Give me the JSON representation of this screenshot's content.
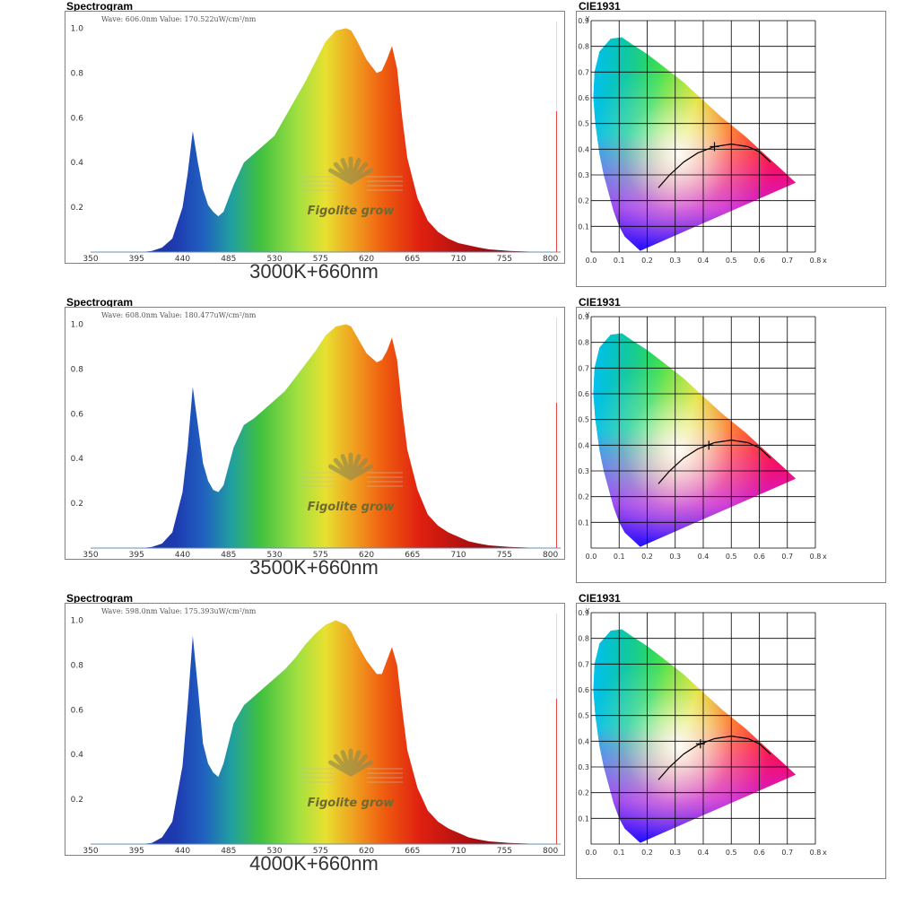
{
  "chart_data": [
    {
      "type": "area",
      "title": "Spectrogram",
      "readout": "Wave: 606.0nm Value: 170.522uW/cm²/nm",
      "caption": "3000K+660nm",
      "watermark": "Figolite grow",
      "xlim": [
        350,
        810
      ],
      "ylim": [
        0,
        1.05
      ],
      "x_ticks": [
        "350",
        "395",
        "440",
        "485",
        "530",
        "575",
        "620",
        "665",
        "710",
        "755",
        "800"
      ],
      "y_ticks": [
        "1.0",
        "0.8",
        "0.6",
        "0.4",
        "0.2"
      ],
      "x": [
        350,
        400,
        410,
        420,
        430,
        440,
        445,
        450,
        455,
        460,
        465,
        470,
        475,
        480,
        490,
        500,
        510,
        520,
        530,
        540,
        550,
        560,
        570,
        580,
        590,
        600,
        605,
        610,
        620,
        630,
        635,
        640,
        645,
        650,
        655,
        660,
        670,
        680,
        690,
        700,
        710,
        720,
        730,
        740,
        760,
        780,
        800,
        810
      ],
      "values": [
        0,
        0,
        0.005,
        0.02,
        0.06,
        0.2,
        0.35,
        0.54,
        0.4,
        0.28,
        0.21,
        0.18,
        0.16,
        0.18,
        0.3,
        0.4,
        0.44,
        0.48,
        0.52,
        0.6,
        0.68,
        0.76,
        0.85,
        0.94,
        0.99,
        1.0,
        0.99,
        0.95,
        0.86,
        0.8,
        0.81,
        0.86,
        0.92,
        0.82,
        0.6,
        0.42,
        0.24,
        0.14,
        0.09,
        0.06,
        0.04,
        0.03,
        0.02,
        0.012,
        0.005,
        0.002,
        0.001,
        0
      ],
      "marker": {
        "x": 806,
        "value": 0.63
      },
      "cie": {
        "title": "CIE1931",
        "point": {
          "x": 0.44,
          "y": 0.41
        },
        "x_ticks": [
          "0.0",
          "0.1",
          "0.2",
          "0.3",
          "0.4",
          "0.5",
          "0.6",
          "0.7",
          "0.8"
        ],
        "y_ticks": [
          "0.9",
          "0.8",
          "0.7",
          "0.6",
          "0.5",
          "0.4",
          "0.3",
          "0.2",
          "0.1"
        ],
        "x_label": "x",
        "y_label": "y"
      }
    },
    {
      "type": "area",
      "title": "Spectrogram",
      "readout": "Wave: 608.0nm Value: 180.477uW/cm²/nm",
      "caption": "3500K+660nm",
      "watermark": "Figolite grow",
      "xlim": [
        350,
        810
      ],
      "ylim": [
        0,
        1.05
      ],
      "x_ticks": [
        "350",
        "395",
        "440",
        "485",
        "530",
        "575",
        "620",
        "665",
        "710",
        "755",
        "800"
      ],
      "y_ticks": [
        "1.0",
        "0.8",
        "0.6",
        "0.4",
        "0.2"
      ],
      "x": [
        350,
        400,
        410,
        420,
        430,
        440,
        445,
        450,
        455,
        460,
        465,
        470,
        475,
        480,
        490,
        500,
        510,
        520,
        530,
        540,
        550,
        560,
        570,
        580,
        590,
        600,
        605,
        610,
        620,
        630,
        635,
        640,
        645,
        650,
        655,
        660,
        670,
        680,
        690,
        700,
        710,
        720,
        730,
        740,
        760,
        780,
        800,
        810
      ],
      "values": [
        0,
        0,
        0.005,
        0.02,
        0.07,
        0.25,
        0.45,
        0.72,
        0.55,
        0.38,
        0.3,
        0.26,
        0.25,
        0.28,
        0.45,
        0.55,
        0.58,
        0.62,
        0.66,
        0.7,
        0.76,
        0.82,
        0.88,
        0.95,
        0.99,
        1.0,
        0.99,
        0.95,
        0.87,
        0.83,
        0.84,
        0.88,
        0.94,
        0.84,
        0.62,
        0.44,
        0.26,
        0.15,
        0.1,
        0.07,
        0.05,
        0.03,
        0.02,
        0.012,
        0.005,
        0.002,
        0.001,
        0
      ],
      "marker": {
        "x": 806,
        "value": 0.65
      },
      "cie": {
        "title": "CIE1931",
        "point": {
          "x": 0.42,
          "y": 0.4
        },
        "x_ticks": [
          "0.0",
          "0.1",
          "0.2",
          "0.3",
          "0.4",
          "0.5",
          "0.6",
          "0.7",
          "0.8"
        ],
        "y_ticks": [
          "0.9",
          "0.8",
          "0.7",
          "0.6",
          "0.5",
          "0.4",
          "0.3",
          "0.2",
          "0.1"
        ],
        "x_label": "x",
        "y_label": "y"
      }
    },
    {
      "type": "area",
      "title": "Spectrogram",
      "readout": "Wave: 598.0nm Value: 175.393uW/cm²/nm",
      "caption": "4000K+660nm",
      "watermark": "Figolite grow",
      "xlim": [
        350,
        810
      ],
      "ylim": [
        0,
        1.05
      ],
      "x_ticks": [
        "350",
        "395",
        "440",
        "485",
        "530",
        "575",
        "620",
        "665",
        "710",
        "755",
        "800"
      ],
      "y_ticks": [
        "1.0",
        "0.8",
        "0.6",
        "0.4",
        "0.2"
      ],
      "x": [
        350,
        400,
        410,
        420,
        430,
        440,
        445,
        450,
        455,
        460,
        465,
        470,
        475,
        480,
        490,
        500,
        510,
        520,
        530,
        540,
        550,
        560,
        570,
        580,
        590,
        600,
        605,
        610,
        620,
        630,
        635,
        640,
        645,
        650,
        655,
        660,
        670,
        680,
        690,
        700,
        710,
        720,
        730,
        740,
        760,
        780,
        800,
        810
      ],
      "values": [
        0,
        0,
        0.005,
        0.03,
        0.1,
        0.35,
        0.62,
        0.93,
        0.7,
        0.45,
        0.36,
        0.32,
        0.3,
        0.36,
        0.54,
        0.62,
        0.66,
        0.7,
        0.74,
        0.78,
        0.83,
        0.89,
        0.94,
        0.98,
        1.0,
        0.98,
        0.95,
        0.9,
        0.82,
        0.76,
        0.76,
        0.82,
        0.88,
        0.8,
        0.6,
        0.42,
        0.25,
        0.15,
        0.1,
        0.07,
        0.05,
        0.03,
        0.02,
        0.012,
        0.005,
        0.002,
        0.001,
        0
      ],
      "marker": {
        "x": 806,
        "value": 0.65
      },
      "cie": {
        "title": "CIE1931",
        "point": {
          "x": 0.39,
          "y": 0.39
        },
        "x_ticks": [
          "0.0",
          "0.1",
          "0.2",
          "0.3",
          "0.4",
          "0.5",
          "0.6",
          "0.7",
          "0.8"
        ],
        "y_ticks": [
          "0.9",
          "0.8",
          "0.7",
          "0.6",
          "0.5",
          "0.4",
          "0.3",
          "0.2",
          "0.1"
        ],
        "x_label": "x",
        "y_label": "y"
      }
    }
  ]
}
